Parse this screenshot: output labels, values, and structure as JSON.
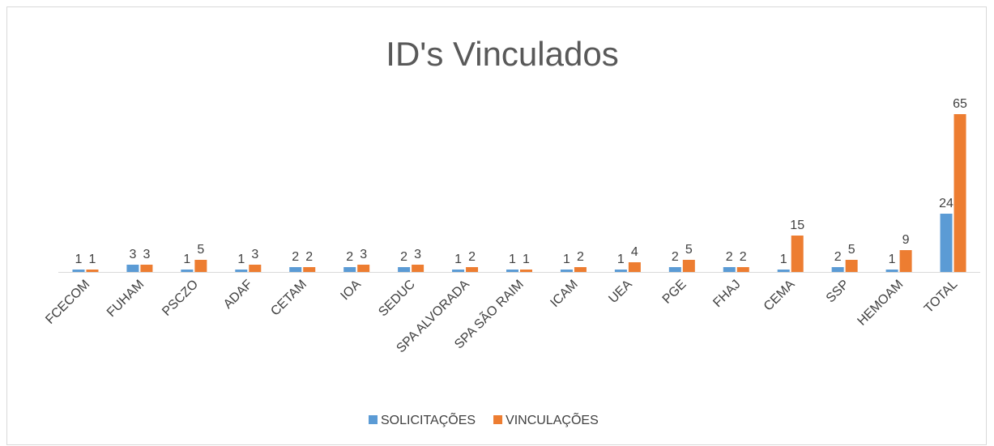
{
  "chart_data": {
    "type": "bar",
    "title": "ID's Vinculados",
    "categories": [
      "FCECOM",
      "FUHAM",
      "PSCZO",
      "ADAF",
      "CETAM",
      "IOA",
      "SEDUC",
      "SPA ALVORADA",
      "SPA SÃO RAIM",
      "ICAM",
      "UEA",
      "PGE",
      "FHAJ",
      "CEMA",
      "SSP",
      "HEMOAM",
      "TOTAL"
    ],
    "series": [
      {
        "name": "SOLICITAÇÕES",
        "color": "#5b9bd5",
        "values": [
          1,
          3,
          1,
          1,
          2,
          2,
          2,
          1,
          1,
          1,
          1,
          2,
          2,
          1,
          2,
          1,
          24
        ]
      },
      {
        "name": "VINCULAÇÕES",
        "color": "#ed7d31",
        "values": [
          1,
          3,
          5,
          3,
          2,
          3,
          3,
          2,
          1,
          2,
          4,
          5,
          2,
          15,
          5,
          9,
          65
        ]
      }
    ],
    "ylim": [
      0,
      70
    ],
    "legend": "bottom"
  }
}
